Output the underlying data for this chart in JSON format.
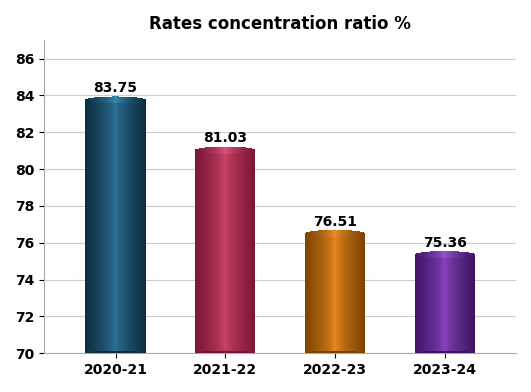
{
  "title": "Rates concentration ratio %",
  "categories": [
    "2020-21",
    "2021-22",
    "2022-23",
    "2023-24"
  ],
  "values": [
    83.75,
    81.03,
    76.51,
    75.36
  ],
  "bar_colors_center": [
    "#2e7399",
    "#cc4466",
    "#e88820",
    "#8844bb"
  ],
  "bar_colors_edge": [
    "#0d2d40",
    "#7a1535",
    "#7a4400",
    "#3d1566"
  ],
  "bar_top_center": [
    "#3a8ab0",
    "#dd5577",
    "#f09030",
    "#9955cc"
  ],
  "bar_top_edge": [
    "#0d2d40",
    "#7a1535",
    "#7a4400",
    "#3d1566"
  ],
  "ylim": [
    70,
    87
  ],
  "yticks": [
    70,
    72,
    74,
    76,
    78,
    80,
    82,
    84,
    86
  ],
  "title_fontsize": 12,
  "label_fontsize": 10,
  "tick_fontsize": 10,
  "value_fontsize": 10,
  "background_color": "#ffffff",
  "grid_color": "#cccccc",
  "bar_width": 0.55,
  "n_gradient_steps": 100
}
